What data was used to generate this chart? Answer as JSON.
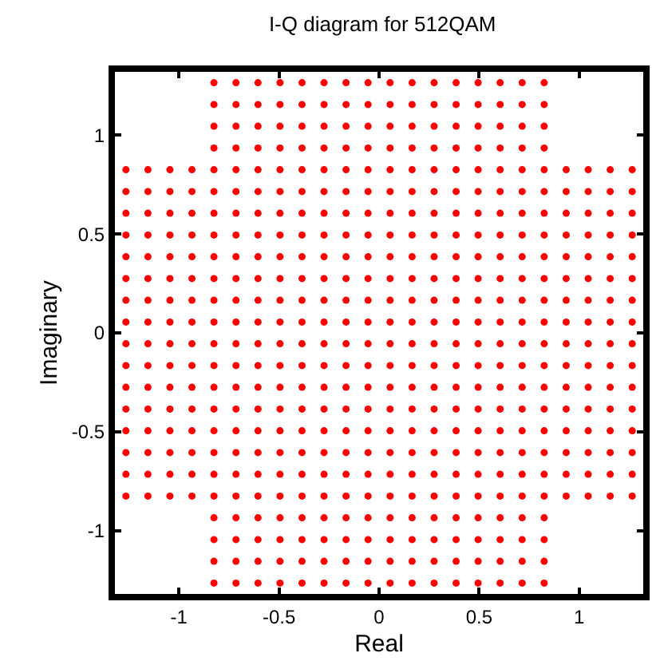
{
  "chart_data": {
    "type": "scatter",
    "title": "I-Q diagram for 512QAM",
    "xlabel": "Real",
    "ylabel": "Imaginary",
    "xlim": [
      -1.32,
      1.32
    ],
    "ylim": [
      -1.32,
      1.32
    ],
    "xticks": [
      -1,
      -0.5,
      0,
      0.5,
      1
    ],
    "yticks": [
      -1,
      -0.5,
      0,
      0.5,
      1
    ],
    "grid": false,
    "marker": "circle",
    "series": [
      {
        "color": "#ff0000",
        "x": [
          -1.265,
          -1.265,
          -1.265,
          -1.265,
          -1.265,
          -1.265,
          -1.265,
          -1.265,
          -1.265,
          -1.265,
          -1.265,
          -1.265,
          -1.265,
          -1.265,
          -1.265,
          -1.265
        ],
        "values": [
          -0.825,
          -0.715,
          -0.605,
          -0.495,
          -0.385,
          -0.275,
          -0.165,
          -0.055,
          0.055,
          0.165,
          0.275,
          0.385,
          0.495,
          0.605,
          0.715,
          0.825
        ]
      },
      {
        "color": "#ff0000",
        "x": [
          -1.155,
          -1.155,
          -1.155,
          -1.155,
          -1.155,
          -1.155,
          -1.155,
          -1.155,
          -1.155,
          -1.155,
          -1.155,
          -1.155,
          -1.155,
          -1.155,
          -1.155,
          -1.155
        ],
        "values": [
          -0.825,
          -0.715,
          -0.605,
          -0.495,
          -0.385,
          -0.275,
          -0.165,
          -0.055,
          0.055,
          0.165,
          0.275,
          0.385,
          0.495,
          0.605,
          0.715,
          0.825
        ]
      },
      {
        "color": "#ff0000",
        "x": [
          -1.045,
          -1.045,
          -1.045,
          -1.045,
          -1.045,
          -1.045,
          -1.045,
          -1.045,
          -1.045,
          -1.045,
          -1.045,
          -1.045,
          -1.045,
          -1.045,
          -1.045,
          -1.045
        ],
        "values": [
          -0.825,
          -0.715,
          -0.605,
          -0.495,
          -0.385,
          -0.275,
          -0.165,
          -0.055,
          0.055,
          0.165,
          0.275,
          0.385,
          0.495,
          0.605,
          0.715,
          0.825
        ]
      },
      {
        "color": "#ff0000",
        "x": [
          -0.935,
          -0.935,
          -0.935,
          -0.935,
          -0.935,
          -0.935,
          -0.935,
          -0.935,
          -0.935,
          -0.935,
          -0.935,
          -0.935,
          -0.935,
          -0.935,
          -0.935,
          -0.935
        ],
        "values": [
          -0.825,
          -0.715,
          -0.605,
          -0.495,
          -0.385,
          -0.275,
          -0.165,
          -0.055,
          0.055,
          0.165,
          0.275,
          0.385,
          0.495,
          0.605,
          0.715,
          0.825
        ]
      },
      {
        "color": "#ff0000",
        "x": [
          -0.825,
          -0.825,
          -0.825,
          -0.825,
          -0.825,
          -0.825,
          -0.825,
          -0.825,
          -0.825,
          -0.825,
          -0.825,
          -0.825,
          -0.825,
          -0.825,
          -0.825,
          -0.825,
          -0.825,
          -0.825,
          -0.825,
          -0.825,
          -0.825,
          -0.825,
          -0.825,
          -0.825
        ],
        "values": [
          -1.265,
          -1.155,
          -1.045,
          -0.935,
          -0.825,
          -0.715,
          -0.605,
          -0.495,
          -0.385,
          -0.275,
          -0.165,
          -0.055,
          0.055,
          0.165,
          0.275,
          0.385,
          0.495,
          0.605,
          0.715,
          0.825,
          0.935,
          1.045,
          1.155,
          1.265
        ]
      },
      {
        "color": "#ff0000",
        "x": [
          -0.715,
          -0.715,
          -0.715,
          -0.715,
          -0.715,
          -0.715,
          -0.715,
          -0.715,
          -0.715,
          -0.715,
          -0.715,
          -0.715,
          -0.715,
          -0.715,
          -0.715,
          -0.715,
          -0.715,
          -0.715,
          -0.715,
          -0.715,
          -0.715,
          -0.715,
          -0.715,
          -0.715
        ],
        "values": [
          -1.265,
          -1.155,
          -1.045,
          -0.935,
          -0.825,
          -0.715,
          -0.605,
          -0.495,
          -0.385,
          -0.275,
          -0.165,
          -0.055,
          0.055,
          0.165,
          0.275,
          0.385,
          0.495,
          0.605,
          0.715,
          0.825,
          0.935,
          1.045,
          1.155,
          1.265
        ]
      },
      {
        "color": "#ff0000",
        "x": [
          -0.605,
          -0.605,
          -0.605,
          -0.605,
          -0.605,
          -0.605,
          -0.605,
          -0.605,
          -0.605,
          -0.605,
          -0.605,
          -0.605,
          -0.605,
          -0.605,
          -0.605,
          -0.605,
          -0.605,
          -0.605,
          -0.605,
          -0.605,
          -0.605,
          -0.605,
          -0.605,
          -0.605
        ],
        "values": [
          -1.265,
          -1.155,
          -1.045,
          -0.935,
          -0.825,
          -0.715,
          -0.605,
          -0.495,
          -0.385,
          -0.275,
          -0.165,
          -0.055,
          0.055,
          0.165,
          0.275,
          0.385,
          0.495,
          0.605,
          0.715,
          0.825,
          0.935,
          1.045,
          1.155,
          1.265
        ]
      },
      {
        "color": "#ff0000",
        "x": [
          -0.495,
          -0.495,
          -0.495,
          -0.495,
          -0.495,
          -0.495,
          -0.495,
          -0.495,
          -0.495,
          -0.495,
          -0.495,
          -0.495,
          -0.495,
          -0.495,
          -0.495,
          -0.495,
          -0.495,
          -0.495,
          -0.495,
          -0.495,
          -0.495,
          -0.495,
          -0.495,
          -0.495
        ],
        "values": [
          -1.265,
          -1.155,
          -1.045,
          -0.935,
          -0.825,
          -0.715,
          -0.605,
          -0.495,
          -0.385,
          -0.275,
          -0.165,
          -0.055,
          0.055,
          0.165,
          0.275,
          0.385,
          0.495,
          0.605,
          0.715,
          0.825,
          0.935,
          1.045,
          1.155,
          1.265
        ]
      },
      {
        "color": "#ff0000",
        "x": [
          -0.385,
          -0.385,
          -0.385,
          -0.385,
          -0.385,
          -0.385,
          -0.385,
          -0.385,
          -0.385,
          -0.385,
          -0.385,
          -0.385,
          -0.385,
          -0.385,
          -0.385,
          -0.385,
          -0.385,
          -0.385,
          -0.385,
          -0.385,
          -0.385,
          -0.385,
          -0.385,
          -0.385
        ],
        "values": [
          -1.265,
          -1.155,
          -1.045,
          -0.935,
          -0.825,
          -0.715,
          -0.605,
          -0.495,
          -0.385,
          -0.275,
          -0.165,
          -0.055,
          0.055,
          0.165,
          0.275,
          0.385,
          0.495,
          0.605,
          0.715,
          0.825,
          0.935,
          1.045,
          1.155,
          1.265
        ]
      },
      {
        "color": "#ff0000",
        "x": [
          -0.275,
          -0.275,
          -0.275,
          -0.275,
          -0.275,
          -0.275,
          -0.275,
          -0.275,
          -0.275,
          -0.275,
          -0.275,
          -0.275,
          -0.275,
          -0.275,
          -0.275,
          -0.275,
          -0.275,
          -0.275,
          -0.275,
          -0.275,
          -0.275,
          -0.275,
          -0.275,
          -0.275
        ],
        "values": [
          -1.265,
          -1.155,
          -1.045,
          -0.935,
          -0.825,
          -0.715,
          -0.605,
          -0.495,
          -0.385,
          -0.275,
          -0.165,
          -0.055,
          0.055,
          0.165,
          0.275,
          0.385,
          0.495,
          0.605,
          0.715,
          0.825,
          0.935,
          1.045,
          1.155,
          1.265
        ]
      },
      {
        "color": "#ff0000",
        "x": [
          -0.165,
          -0.165,
          -0.165,
          -0.165,
          -0.165,
          -0.165,
          -0.165,
          -0.165,
          -0.165,
          -0.165,
          -0.165,
          -0.165,
          -0.165,
          -0.165,
          -0.165,
          -0.165,
          -0.165,
          -0.165,
          -0.165,
          -0.165,
          -0.165,
          -0.165,
          -0.165,
          -0.165
        ],
        "values": [
          -1.265,
          -1.155,
          -1.045,
          -0.935,
          -0.825,
          -0.715,
          -0.605,
          -0.495,
          -0.385,
          -0.275,
          -0.165,
          -0.055,
          0.055,
          0.165,
          0.275,
          0.385,
          0.495,
          0.605,
          0.715,
          0.825,
          0.935,
          1.045,
          1.155,
          1.265
        ]
      },
      {
        "color": "#ff0000",
        "x": [
          -0.055,
          -0.055,
          -0.055,
          -0.055,
          -0.055,
          -0.055,
          -0.055,
          -0.055,
          -0.055,
          -0.055,
          -0.055,
          -0.055,
          -0.055,
          -0.055,
          -0.055,
          -0.055,
          -0.055,
          -0.055,
          -0.055,
          -0.055,
          -0.055,
          -0.055,
          -0.055,
          -0.055
        ],
        "values": [
          -1.265,
          -1.155,
          -1.045,
          -0.935,
          -0.825,
          -0.715,
          -0.605,
          -0.495,
          -0.385,
          -0.275,
          -0.165,
          -0.055,
          0.055,
          0.165,
          0.275,
          0.385,
          0.495,
          0.605,
          0.715,
          0.825,
          0.935,
          1.045,
          1.155,
          1.265
        ]
      },
      {
        "color": "#ff0000",
        "x": [
          0.055,
          0.055,
          0.055,
          0.055,
          0.055,
          0.055,
          0.055,
          0.055,
          0.055,
          0.055,
          0.055,
          0.055,
          0.055,
          0.055,
          0.055,
          0.055,
          0.055,
          0.055,
          0.055,
          0.055,
          0.055,
          0.055,
          0.055,
          0.055
        ],
        "values": [
          -1.265,
          -1.155,
          -1.045,
          -0.935,
          -0.825,
          -0.715,
          -0.605,
          -0.495,
          -0.385,
          -0.275,
          -0.165,
          -0.055,
          0.055,
          0.165,
          0.275,
          0.385,
          0.495,
          0.605,
          0.715,
          0.825,
          0.935,
          1.045,
          1.155,
          1.265
        ]
      },
      {
        "color": "#ff0000",
        "x": [
          0.165,
          0.165,
          0.165,
          0.165,
          0.165,
          0.165,
          0.165,
          0.165,
          0.165,
          0.165,
          0.165,
          0.165,
          0.165,
          0.165,
          0.165,
          0.165,
          0.165,
          0.165,
          0.165,
          0.165,
          0.165,
          0.165,
          0.165,
          0.165
        ],
        "values": [
          -1.265,
          -1.155,
          -1.045,
          -0.935,
          -0.825,
          -0.715,
          -0.605,
          -0.495,
          -0.385,
          -0.275,
          -0.165,
          -0.055,
          0.055,
          0.165,
          0.275,
          0.385,
          0.495,
          0.605,
          0.715,
          0.825,
          0.935,
          1.045,
          1.155,
          1.265
        ]
      },
      {
        "color": "#ff0000",
        "x": [
          0.275,
          0.275,
          0.275,
          0.275,
          0.275,
          0.275,
          0.275,
          0.275,
          0.275,
          0.275,
          0.275,
          0.275,
          0.275,
          0.275,
          0.275,
          0.275,
          0.275,
          0.275,
          0.275,
          0.275,
          0.275,
          0.275,
          0.275,
          0.275
        ],
        "values": [
          -1.265,
          -1.155,
          -1.045,
          -0.935,
          -0.825,
          -0.715,
          -0.605,
          -0.495,
          -0.385,
          -0.275,
          -0.165,
          -0.055,
          0.055,
          0.165,
          0.275,
          0.385,
          0.495,
          0.605,
          0.715,
          0.825,
          0.935,
          1.045,
          1.155,
          1.265
        ]
      },
      {
        "color": "#ff0000",
        "x": [
          0.385,
          0.385,
          0.385,
          0.385,
          0.385,
          0.385,
          0.385,
          0.385,
          0.385,
          0.385,
          0.385,
          0.385,
          0.385,
          0.385,
          0.385,
          0.385,
          0.385,
          0.385,
          0.385,
          0.385,
          0.385,
          0.385,
          0.385,
          0.385
        ],
        "values": [
          -1.265,
          -1.155,
          -1.045,
          -0.935,
          -0.825,
          -0.715,
          -0.605,
          -0.495,
          -0.385,
          -0.275,
          -0.165,
          -0.055,
          0.055,
          0.165,
          0.275,
          0.385,
          0.495,
          0.605,
          0.715,
          0.825,
          0.935,
          1.045,
          1.155,
          1.265
        ]
      },
      {
        "color": "#ff0000",
        "x": [
          0.495,
          0.495,
          0.495,
          0.495,
          0.495,
          0.495,
          0.495,
          0.495,
          0.495,
          0.495,
          0.495,
          0.495,
          0.495,
          0.495,
          0.495,
          0.495,
          0.495,
          0.495,
          0.495,
          0.495,
          0.495,
          0.495,
          0.495,
          0.495
        ],
        "values": [
          -1.265,
          -1.155,
          -1.045,
          -0.935,
          -0.825,
          -0.715,
          -0.605,
          -0.495,
          -0.385,
          -0.275,
          -0.165,
          -0.055,
          0.055,
          0.165,
          0.275,
          0.385,
          0.495,
          0.605,
          0.715,
          0.825,
          0.935,
          1.045,
          1.155,
          1.265
        ]
      },
      {
        "color": "#ff0000",
        "x": [
          0.605,
          0.605,
          0.605,
          0.605,
          0.605,
          0.605,
          0.605,
          0.605,
          0.605,
          0.605,
          0.605,
          0.605,
          0.605,
          0.605,
          0.605,
          0.605,
          0.605,
          0.605,
          0.605,
          0.605,
          0.605,
          0.605,
          0.605,
          0.605
        ],
        "values": [
          -1.265,
          -1.155,
          -1.045,
          -0.935,
          -0.825,
          -0.715,
          -0.605,
          -0.495,
          -0.385,
          -0.275,
          -0.165,
          -0.055,
          0.055,
          0.165,
          0.275,
          0.385,
          0.495,
          0.605,
          0.715,
          0.825,
          0.935,
          1.045,
          1.155,
          1.265
        ]
      },
      {
        "color": "#ff0000",
        "x": [
          0.715,
          0.715,
          0.715,
          0.715,
          0.715,
          0.715,
          0.715,
          0.715,
          0.715,
          0.715,
          0.715,
          0.715,
          0.715,
          0.715,
          0.715,
          0.715,
          0.715,
          0.715,
          0.715,
          0.715,
          0.715,
          0.715,
          0.715,
          0.715
        ],
        "values": [
          -1.265,
          -1.155,
          -1.045,
          -0.935,
          -0.825,
          -0.715,
          -0.605,
          -0.495,
          -0.385,
          -0.275,
          -0.165,
          -0.055,
          0.055,
          0.165,
          0.275,
          0.385,
          0.495,
          0.605,
          0.715,
          0.825,
          0.935,
          1.045,
          1.155,
          1.265
        ]
      },
      {
        "color": "#ff0000",
        "x": [
          0.825,
          0.825,
          0.825,
          0.825,
          0.825,
          0.825,
          0.825,
          0.825,
          0.825,
          0.825,
          0.825,
          0.825,
          0.825,
          0.825,
          0.825,
          0.825,
          0.825,
          0.825,
          0.825,
          0.825,
          0.825,
          0.825,
          0.825,
          0.825
        ],
        "values": [
          -1.265,
          -1.155,
          -1.045,
          -0.935,
          -0.825,
          -0.715,
          -0.605,
          -0.495,
          -0.385,
          -0.275,
          -0.165,
          -0.055,
          0.055,
          0.165,
          0.275,
          0.385,
          0.495,
          0.605,
          0.715,
          0.825,
          0.935,
          1.045,
          1.155,
          1.265
        ]
      },
      {
        "color": "#ff0000",
        "x": [
          0.935,
          0.935,
          0.935,
          0.935,
          0.935,
          0.935,
          0.935,
          0.935,
          0.935,
          0.935,
          0.935,
          0.935,
          0.935,
          0.935,
          0.935,
          0.935
        ],
        "values": [
          -0.825,
          -0.715,
          -0.605,
          -0.495,
          -0.385,
          -0.275,
          -0.165,
          -0.055,
          0.055,
          0.165,
          0.275,
          0.385,
          0.495,
          0.605,
          0.715,
          0.825
        ]
      },
      {
        "color": "#ff0000",
        "x": [
          1.045,
          1.045,
          1.045,
          1.045,
          1.045,
          1.045,
          1.045,
          1.045,
          1.045,
          1.045,
          1.045,
          1.045,
          1.045,
          1.045,
          1.045,
          1.045
        ],
        "values": [
          -0.825,
          -0.715,
          -0.605,
          -0.495,
          -0.385,
          -0.275,
          -0.165,
          -0.055,
          0.055,
          0.165,
          0.275,
          0.385,
          0.495,
          0.605,
          0.715,
          0.825
        ]
      },
      {
        "color": "#ff0000",
        "x": [
          1.155,
          1.155,
          1.155,
          1.155,
          1.155,
          1.155,
          1.155,
          1.155,
          1.155,
          1.155,
          1.155,
          1.155,
          1.155,
          1.155,
          1.155,
          1.155
        ],
        "values": [
          -0.825,
          -0.715,
          -0.605,
          -0.495,
          -0.385,
          -0.275,
          -0.165,
          -0.055,
          0.055,
          0.165,
          0.275,
          0.385,
          0.495,
          0.605,
          0.715,
          0.825
        ]
      },
      {
        "color": "#ff0000",
        "x": [
          1.265,
          1.265,
          1.265,
          1.265,
          1.265,
          1.265,
          1.265,
          1.265,
          1.265,
          1.265,
          1.265,
          1.265,
          1.265,
          1.265,
          1.265,
          1.265
        ],
        "values": [
          -0.825,
          -0.715,
          -0.605,
          -0.495,
          -0.385,
          -0.275,
          -0.165,
          -0.055,
          0.055,
          0.165,
          0.275,
          0.385,
          0.495,
          0.605,
          0.715,
          0.825
        ]
      }
    ]
  }
}
